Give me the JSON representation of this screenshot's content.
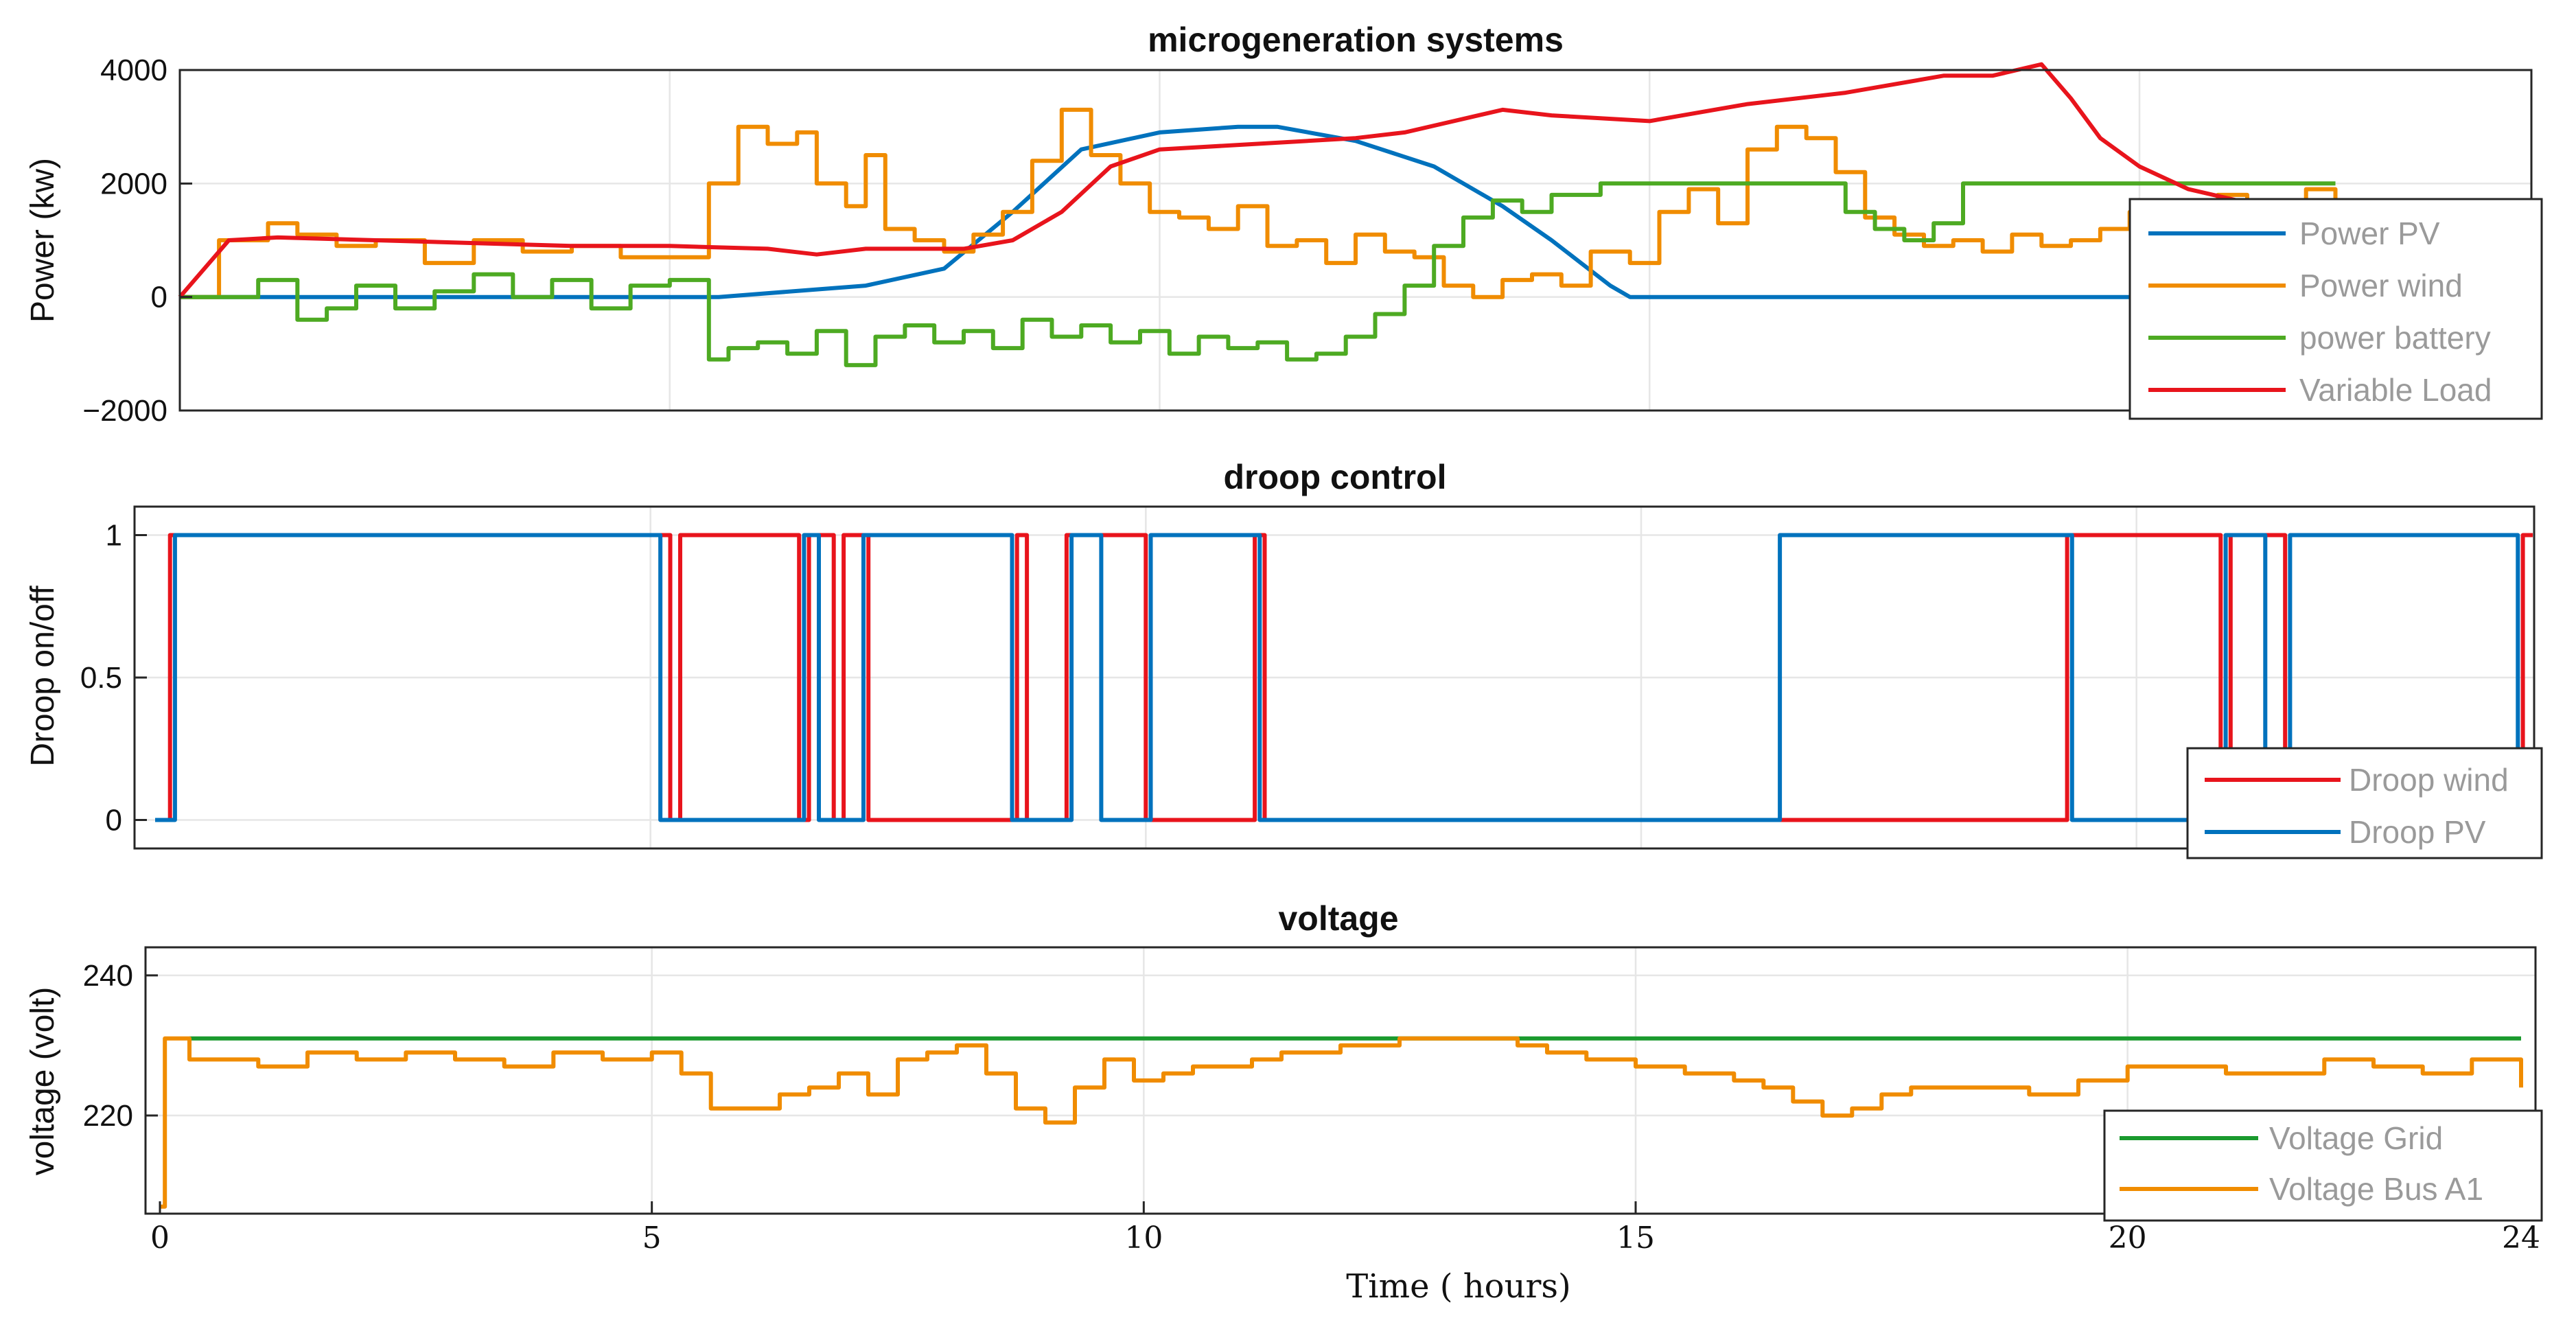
{
  "chart_data": [
    {
      "type": "line",
      "title": "microgeneration  systems",
      "ylabel": "Power (kw)",
      "xlabel": "",
      "xlim": [
        0,
        24
      ],
      "ylim": [
        -2000,
        4000
      ],
      "yticks": [
        -2000,
        0,
        2000,
        4000
      ],
      "ytick_labels": [
        "−2000",
        "0",
        "2000",
        "4000"
      ],
      "grid": true,
      "legend_position": "bottom-right",
      "series": [
        {
          "name": "Power PV",
          "color": "#0072BD",
          "x": [
            0,
            5.5,
            7,
            7.8,
            8.5,
            9.2,
            10,
            10.8,
            11.2,
            12,
            12.8,
            13.5,
            14,
            14.3,
            14.6,
            14.8,
            16,
            24
          ],
          "y": [
            0,
            0,
            200,
            500,
            1500,
            2600,
            2900,
            3000,
            3000,
            2750,
            2300,
            1600,
            1000,
            600,
            200,
            0,
            0,
            0
          ]
        },
        {
          "name": "Power wind",
          "color": "#F08C00",
          "x": [
            0,
            0.4,
            0.6,
            0.9,
            1.2,
            1.6,
            2.0,
            2.5,
            3.0,
            3.5,
            4.0,
            4.5,
            5.0,
            5.4,
            5.7,
            6.0,
            6.3,
            6.5,
            6.8,
            7.0,
            7.2,
            7.5,
            7.8,
            8.1,
            8.4,
            8.7,
            9.0,
            9.3,
            9.6,
            9.9,
            10.2,
            10.5,
            10.8,
            11.1,
            11.4,
            11.7,
            12.0,
            12.3,
            12.6,
            12.9,
            13.2,
            13.5,
            13.8,
            14.1,
            14.4,
            14.8,
            15.1,
            15.4,
            15.7,
            16.0,
            16.3,
            16.6,
            16.9,
            17.2,
            17.5,
            17.8,
            18.1,
            18.4,
            18.7,
            19.0,
            19.3,
            19.6,
            19.9,
            20.2,
            20.5,
            20.8,
            21.1,
            21.4,
            21.7,
            22.0
          ],
          "y": [
            0,
            1000,
            1000,
            1300,
            1100,
            900,
            1000,
            600,
            1000,
            800,
            900,
            700,
            700,
            2000,
            3000,
            2700,
            2900,
            2000,
            1600,
            2500,
            1200,
            1000,
            800,
            1100,
            1500,
            2400,
            3300,
            2500,
            2000,
            1500,
            1400,
            1200,
            1600,
            900,
            1000,
            600,
            1100,
            800,
            700,
            200,
            0,
            300,
            400,
            200,
            800,
            600,
            1500,
            1900,
            1300,
            2600,
            3000,
            2800,
            2200,
            1400,
            1100,
            900,
            1000,
            800,
            1100,
            900,
            1000,
            1200,
            1500,
            1700,
            1600,
            1800,
            1600,
            1600,
            1900,
            1300
          ]
        },
        {
          "name": "power battery",
          "color": "#4DAA22",
          "x": [
            0,
            0.8,
            1.2,
            1.5,
            1.8,
            2.2,
            2.6,
            3.0,
            3.4,
            3.8,
            4.2,
            4.6,
            5.0,
            5.4,
            5.6,
            5.9,
            6.2,
            6.5,
            6.8,
            7.1,
            7.4,
            7.7,
            8.0,
            8.3,
            8.6,
            8.9,
            9.2,
            9.5,
            9.8,
            10.1,
            10.4,
            10.7,
            11.0,
            11.3,
            11.6,
            11.9,
            12.2,
            12.5,
            12.8,
            13.1,
            13.4,
            13.7,
            14.0,
            14.5,
            15.0,
            16.0,
            16.5,
            17.0,
            17.3,
            17.6,
            17.9,
            18.2,
            18.5,
            19.0,
            19.5,
            20.0,
            20.5,
            21.0,
            21.5,
            22.0
          ],
          "y": [
            0,
            300,
            -400,
            -200,
            200,
            -200,
            100,
            400,
            0,
            300,
            -200,
            200,
            300,
            -1100,
            -900,
            -800,
            -1000,
            -600,
            -1200,
            -700,
            -500,
            -800,
            -600,
            -900,
            -400,
            -700,
            -500,
            -800,
            -600,
            -1000,
            -700,
            -900,
            -800,
            -1100,
            -1000,
            -700,
            -300,
            200,
            900,
            1400,
            1700,
            1500,
            1800,
            2000,
            2000,
            2000,
            2000,
            1500,
            1200,
            1000,
            1300,
            2000,
            2000,
            2000,
            2000,
            2000,
            2000,
            2000,
            2000,
            2000
          ]
        },
        {
          "name": "Variable Load",
          "color": "#E8141C",
          "x": [
            0,
            0.5,
            1,
            2,
            3,
            4,
            5,
            6,
            6.5,
            7,
            8,
            8.5,
            9,
            9.5,
            10,
            11,
            12,
            12.5,
            13,
            13.5,
            14,
            15,
            16,
            17,
            18,
            18.5,
            19.0,
            19.3,
            19.6,
            20,
            20.5,
            21,
            21.5,
            22
          ],
          "y": [
            0,
            1000,
            1050,
            1000,
            950,
            900,
            900,
            850,
            750,
            850,
            850,
            1000,
            1500,
            2300,
            2600,
            2700,
            2800,
            2900,
            3100,
            3300,
            3200,
            3100,
            3400,
            3600,
            3900,
            3900,
            4100,
            3500,
            2800,
            2300,
            1900,
            1700,
            1600,
            1600
          ]
        }
      ],
      "legend": [
        "Power PV",
        "Power wind",
        "power battery",
        "Variable Load"
      ]
    },
    {
      "type": "line",
      "title": "droop control",
      "ylabel": "Droop on/off",
      "xlabel": "",
      "xlim": [
        0,
        24
      ],
      "ylim": [
        -0.1,
        1.1
      ],
      "yticks": [
        0,
        0.5,
        1
      ],
      "ytick_labels": [
        "0",
        "0.5",
        "1"
      ],
      "grid": true,
      "legend_position": "bottom-right",
      "series": [
        {
          "name": "Droop wind",
          "color": "#E8141C",
          "x": [
            0,
            0.15,
            0.15,
            5.2,
            5.2,
            5.3,
            5.3,
            6.5,
            6.5,
            6.6,
            6.6,
            6.85,
            6.85,
            6.95,
            6.95,
            7.2,
            7.2,
            8.7,
            8.7,
            8.8,
            8.8,
            9.2,
            9.2,
            10.0,
            10.0,
            11.1,
            11.1,
            11.2,
            11.2,
            19.3,
            19.3,
            20.85,
            20.85,
            20.95,
            20.95,
            21.5,
            21.5,
            23.9,
            23.9,
            24
          ],
          "y": [
            0,
            0,
            1,
            1,
            0,
            0,
            1,
            1,
            0,
            0,
            1,
            1,
            0,
            0,
            1,
            1,
            0,
            0,
            1,
            1,
            0,
            0,
            1,
            1,
            0,
            0,
            1,
            1,
            0,
            0,
            1,
            1,
            0,
            0,
            1,
            1,
            0,
            0,
            1,
            1
          ]
        },
        {
          "name": "Droop PV",
          "color": "#0072BD",
          "x": [
            0,
            0.2,
            0.2,
            5.1,
            5.1,
            6.55,
            6.55,
            6.7,
            6.7,
            7.15,
            7.15,
            8.65,
            8.65,
            9.25,
            9.25,
            9.55,
            9.55,
            10.05,
            10.05,
            11.15,
            11.15,
            16.4,
            16.4,
            19.35,
            19.35,
            20.9,
            20.9,
            21.3,
            21.3,
            21.55,
            21.55,
            23.85,
            23.85,
            24
          ],
          "y": [
            0,
            0,
            1,
            1,
            0,
            0,
            1,
            1,
            0,
            0,
            1,
            1,
            0,
            0,
            1,
            1,
            0,
            0,
            1,
            1,
            0,
            0,
            1,
            1,
            0,
            0,
            1,
            1,
            0,
            0,
            1,
            1,
            0,
            0
          ]
        }
      ],
      "legend": [
        "Droop wind",
        "Droop PV"
      ]
    },
    {
      "type": "line",
      "title": "voltage",
      "ylabel": "voltage (volt)",
      "xlabel": "Time ( hours)",
      "xlim": [
        0,
        24
      ],
      "ylim": [
        206,
        244
      ],
      "yticks": [
        220,
        240
      ],
      "ytick_labels": [
        "220",
        "240"
      ],
      "xticks": [
        0,
        5,
        10,
        15,
        20,
        24
      ],
      "xtick_labels": [
        "0",
        "5",
        "10",
        "15",
        "20",
        "24"
      ],
      "grid": true,
      "legend_position": "bottom-right",
      "series": [
        {
          "name": "Voltage Grid",
          "color": "#1A9A2E",
          "x": [
            0.3,
            24
          ],
          "y": [
            231,
            231
          ]
        },
        {
          "name": "Voltage Bus A1",
          "color": "#F08C00",
          "x": [
            0,
            0.05,
            0.1,
            0.3,
            0.5,
            1.0,
            1.5,
            2.0,
            2.5,
            3.0,
            3.5,
            4.0,
            4.5,
            5.0,
            5.3,
            5.6,
            6.0,
            6.3,
            6.6,
            6.9,
            7.2,
            7.5,
            7.8,
            8.1,
            8.4,
            8.7,
            9.0,
            9.3,
            9.6,
            9.9,
            10.2,
            10.5,
            10.8,
            11.1,
            11.4,
            11.7,
            12.0,
            12.3,
            12.6,
            12.9,
            13.2,
            13.5,
            13.8,
            14.1,
            14.5,
            15.0,
            15.5,
            16.0,
            16.3,
            16.6,
            16.9,
            17.2,
            17.5,
            17.8,
            18.1,
            18.5,
            19.0,
            19.5,
            20.0,
            20.5,
            21.0,
            21.5,
            22.0,
            22.5,
            23.0,
            23.5,
            24.0
          ],
          "y": [
            207,
            231,
            231,
            228,
            228,
            227,
            229,
            228,
            229,
            228,
            227,
            229,
            228,
            229,
            226,
            221,
            221,
            223,
            224,
            226,
            223,
            228,
            229,
            230,
            226,
            221,
            219,
            224,
            228,
            225,
            226,
            227,
            227,
            228,
            229,
            229,
            230,
            230,
            231,
            231,
            231,
            231,
            230,
            229,
            228,
            227,
            226,
            225,
            224,
            222,
            220,
            221,
            223,
            224,
            224,
            224,
            223,
            225,
            227,
            227,
            226,
            226,
            228,
            227,
            226,
            228,
            224
          ]
        }
      ],
      "legend": [
        "Voltage Grid",
        "Voltage Bus A1"
      ]
    }
  ]
}
